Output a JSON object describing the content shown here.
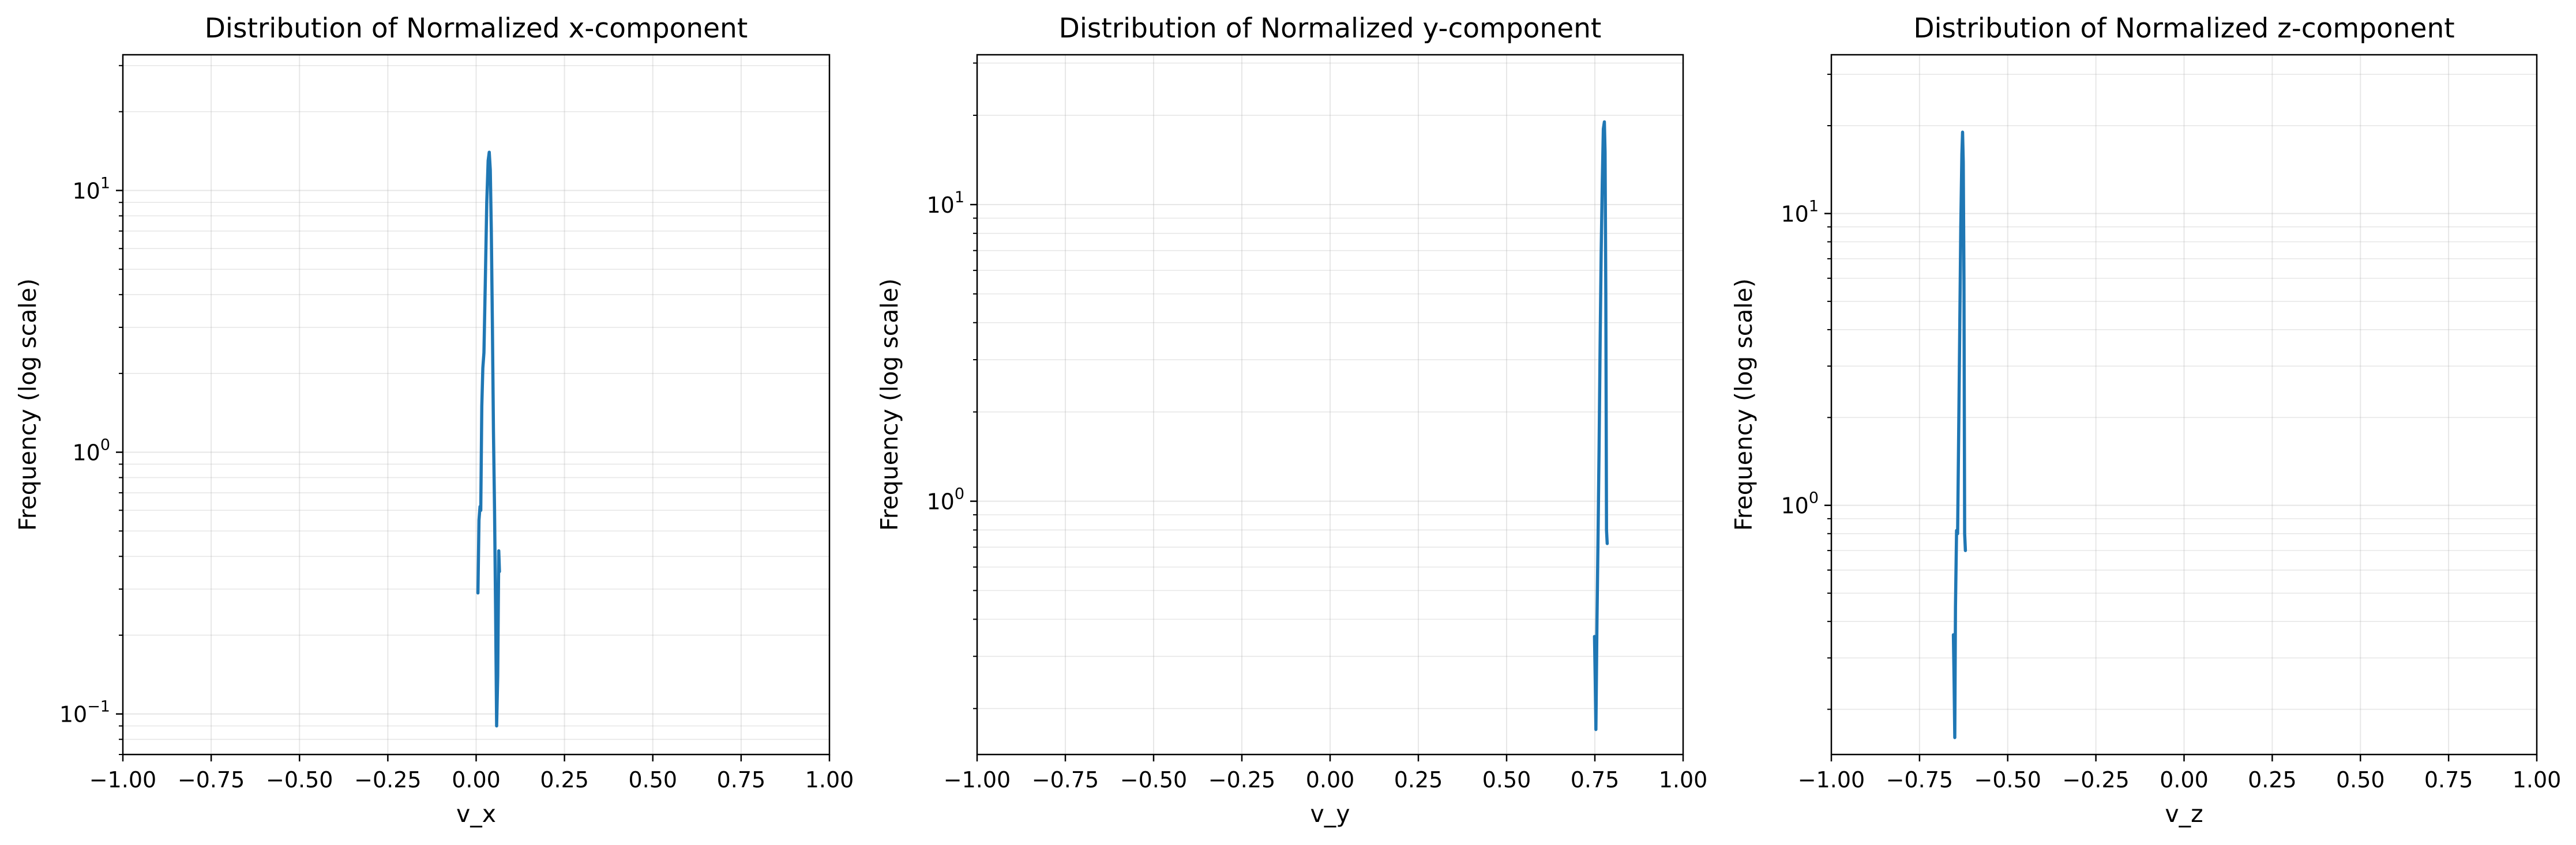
{
  "chart_data": [
    {
      "type": "line",
      "title": "Distribution of Normalized x-component",
      "xlabel": "v_x",
      "ylabel": "Frequency (log scale)",
      "yscale": "log",
      "xlim": [
        -1.0,
        1.0
      ],
      "ylim": [
        0.07,
        33
      ],
      "grid": true,
      "color": "#1f77b4",
      "xticks": [
        "−1.00",
        "−0.75",
        "−0.50",
        "−0.25",
        "0.00",
        "0.25",
        "0.50",
        "0.75",
        "1.00"
      ],
      "yticks": [
        {
          "base": "10",
          "exp": "−1",
          "value": 0.1
        },
        {
          "base": "10",
          "exp": "0",
          "value": 1
        },
        {
          "base": "10",
          "exp": "1",
          "value": 10
        }
      ],
      "series": [
        {
          "x": [
            0.005,
            0.008,
            0.011,
            0.013,
            0.016,
            0.019,
            0.022,
            0.026,
            0.03,
            0.034,
            0.037,
            0.04,
            0.043,
            0.046,
            0.049,
            0.052,
            0.055,
            0.058,
            0.061,
            0.064,
            0.066
          ],
          "y": [
            0.29,
            0.55,
            0.62,
            0.6,
            1.5,
            2.1,
            2.4,
            4.5,
            9.0,
            13.0,
            14.0,
            12.0,
            7.0,
            3.0,
            1.2,
            0.6,
            0.25,
            0.09,
            0.14,
            0.42,
            0.35
          ]
        }
      ]
    },
    {
      "type": "line",
      "title": "Distribution of Normalized y-component",
      "xlabel": "v_y",
      "ylabel": "Frequency (log scale)",
      "yscale": "log",
      "xlim": [
        -1.0,
        1.0
      ],
      "ylim": [
        0.14,
        32
      ],
      "grid": true,
      "color": "#1f77b4",
      "xticks": [
        "−1.00",
        "−0.75",
        "−0.50",
        "−0.25",
        "0.00",
        "0.25",
        "0.50",
        "0.75",
        "1.00"
      ],
      "yticks": [
        {
          "base": "10",
          "exp": "0",
          "value": 1
        },
        {
          "base": "10",
          "exp": "1",
          "value": 10
        }
      ],
      "series": [
        {
          "x": [
            0.749,
            0.751,
            0.753,
            0.756,
            0.759,
            0.762,
            0.765,
            0.768,
            0.771,
            0.774,
            0.777,
            0.779,
            0.781,
            0.783,
            0.785
          ],
          "y": [
            0.35,
            0.25,
            0.17,
            0.4,
            0.75,
            1.5,
            3.5,
            7.0,
            12.0,
            18.0,
            19.0,
            15.0,
            5.0,
            0.8,
            0.72
          ]
        }
      ]
    },
    {
      "type": "line",
      "title": "Distribution of Normalized z-component",
      "xlabel": "v_z",
      "ylabel": "Frequency (log scale)",
      "yscale": "log",
      "xlim": [
        -1.0,
        1.0
      ],
      "ylim": [
        0.14,
        35
      ],
      "grid": true,
      "color": "#1f77b4",
      "xticks": [
        "−1.00",
        "−0.75",
        "−0.50",
        "−0.25",
        "0.00",
        "0.25",
        "0.50",
        "0.75",
        "1.00"
      ],
      "yticks": [
        {
          "base": "10",
          "exp": "0",
          "value": 1
        },
        {
          "base": "10",
          "exp": "1",
          "value": 10
        }
      ],
      "series": [
        {
          "x": [
            -0.654,
            -0.652,
            -0.65,
            -0.648,
            -0.645,
            -0.642,
            -0.639,
            -0.636,
            -0.633,
            -0.63,
            -0.628,
            -0.626,
            -0.624,
            -0.622,
            -0.62
          ],
          "y": [
            0.36,
            0.25,
            0.16,
            0.45,
            0.82,
            0.8,
            1.8,
            4.0,
            9.0,
            16.0,
            19.0,
            15.0,
            6.0,
            0.8,
            0.7
          ]
        }
      ]
    }
  ]
}
